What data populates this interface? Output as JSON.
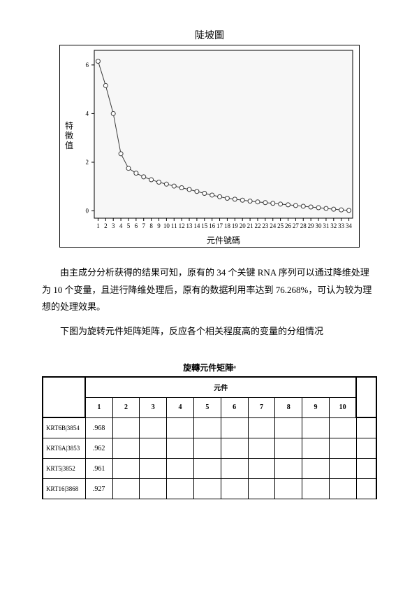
{
  "chart": {
    "type": "line",
    "title": "陡坡圖",
    "xlabel": "元件號碼",
    "ylabel": "特徵值",
    "x": [
      1,
      2,
      3,
      4,
      5,
      6,
      7,
      8,
      9,
      10,
      11,
      12,
      13,
      14,
      15,
      16,
      17,
      18,
      19,
      20,
      21,
      22,
      23,
      24,
      25,
      26,
      27,
      28,
      29,
      30,
      31,
      32,
      33,
      34
    ],
    "y": [
      6.15,
      5.15,
      4.0,
      2.35,
      1.75,
      1.55,
      1.4,
      1.28,
      1.18,
      1.1,
      1.02,
      0.95,
      0.88,
      0.8,
      0.72,
      0.65,
      0.58,
      0.52,
      0.48,
      0.44,
      0.4,
      0.37,
      0.34,
      0.31,
      0.28,
      0.25,
      0.22,
      0.19,
      0.16,
      0.13,
      0.1,
      0.07,
      0.04,
      0.02
    ],
    "xlim": [
      0.5,
      34.5
    ],
    "ylim": [
      -0.3,
      6.6
    ],
    "yticks": [
      0,
      2,
      4,
      6
    ],
    "xtick_step": 1,
    "line_color": "#3a3a3a",
    "line_width": 1,
    "marker": "circle",
    "marker_size": 3,
    "marker_fill": "#ffffff",
    "marker_stroke": "#3a3a3a",
    "background_color": "#ffffff",
    "panel_bg": "#f7f7f7",
    "border_color": "#000000",
    "font_size_title": 14,
    "font_size_label": 12,
    "font_size_tick": 9
  },
  "paragraph1": "由主成分分析获得的结果可知，原有的 34 个关键 RNA 序列可以通过降维处理为 10 个变量，且进行降维处理后，原有的数据利用率达到 76.268%，可认为较为理想的处理效果。",
  "paragraph2": "下图为旋转元件矩阵矩阵，反应各个相关程度高的变量的分组情况",
  "table": {
    "title": "旋轉元件矩陣ᵃ",
    "component_header": "元件",
    "columns": [
      "1",
      "2",
      "3",
      "4",
      "5",
      "6",
      "7",
      "8",
      "9",
      "10"
    ],
    "rows": [
      {
        "label": "KRT6B|3854",
        "values": [
          ".968",
          "",
          "",
          "",
          "",
          "",
          "",
          "",
          "",
          ""
        ]
      },
      {
        "label": "KRT6A|3853",
        "values": [
          ".962",
          "",
          "",
          "",
          "",
          "",
          "",
          "",
          "",
          ""
        ]
      },
      {
        "label": "KRT5|3852",
        "values": [
          ".961",
          "",
          "",
          "",
          "",
          "",
          "",
          "",
          "",
          ""
        ]
      },
      {
        "label": "KRT16|3868",
        "values": [
          ".927",
          "",
          "",
          "",
          "",
          "",
          "",
          "",
          "",
          ""
        ]
      }
    ],
    "border_color": "#000000",
    "font_size": 10
  }
}
